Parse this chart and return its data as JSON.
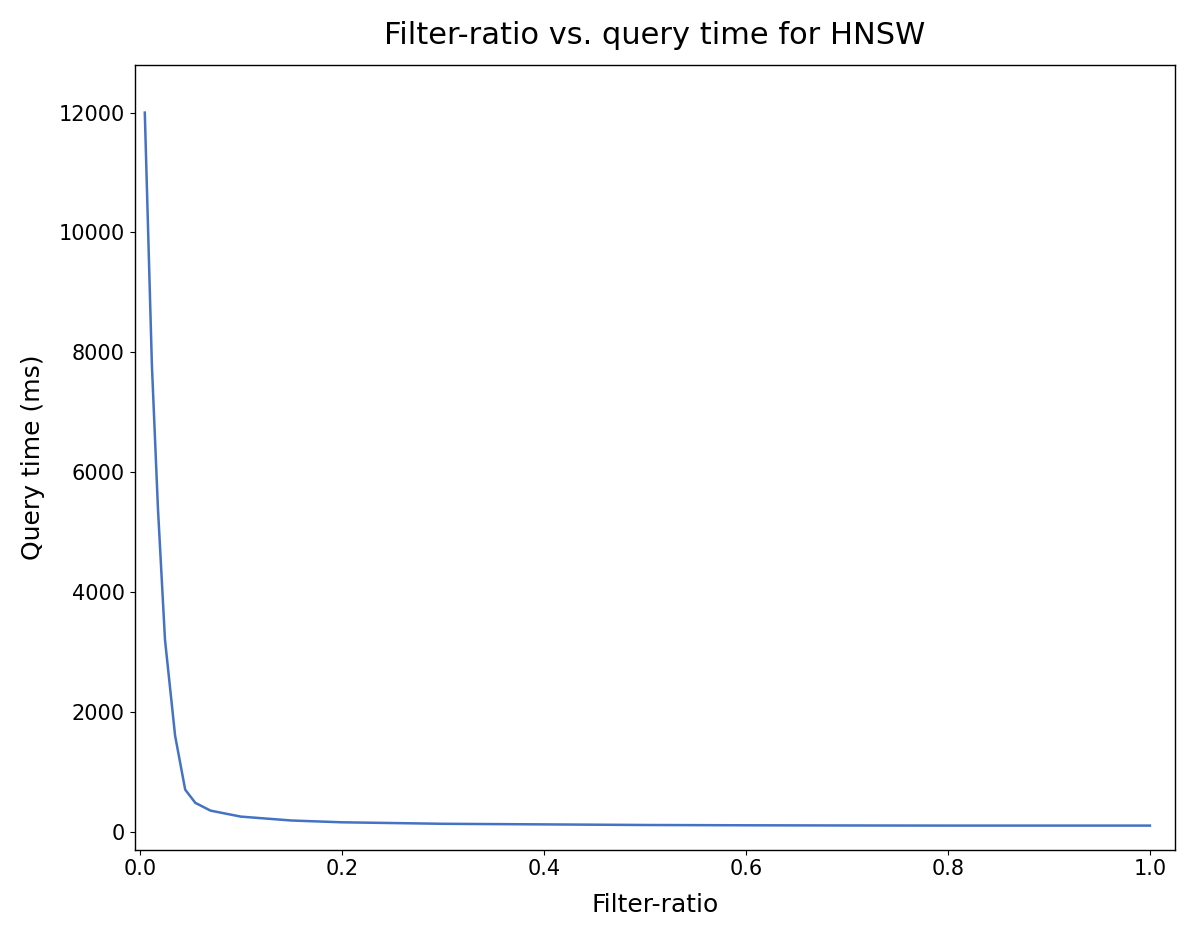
{
  "title": "Filter-ratio vs. query time for HNSW",
  "xlabel": "Filter-ratio",
  "ylabel": "Query time (ms)",
  "line_color": "#4472c4",
  "line_width": 1.8,
  "xlim": [
    -0.005,
    1.025
  ],
  "ylim": [
    -300,
    12800
  ],
  "x_ticks": [
    0.0,
    0.2,
    0.4,
    0.6,
    0.8,
    1.0
  ],
  "y_ticks": [
    0,
    2000,
    4000,
    6000,
    8000,
    10000,
    12000
  ],
  "title_fontsize": 22,
  "label_fontsize": 18,
  "tick_fontsize": 15,
  "figwidth": 11.96,
  "figheight": 9.38,
  "x_data": [
    0.005,
    0.008,
    0.012,
    0.018,
    0.025,
    0.035,
    0.045,
    0.055,
    0.07,
    0.1,
    0.15,
    0.2,
    0.3,
    0.4,
    0.5,
    0.6,
    0.7,
    0.8,
    0.9,
    1.0
  ],
  "y_data": [
    12000,
    10200,
    7800,
    5400,
    3200,
    1600,
    700,
    480,
    350,
    250,
    185,
    155,
    130,
    120,
    110,
    105,
    102,
    100,
    100,
    100
  ]
}
